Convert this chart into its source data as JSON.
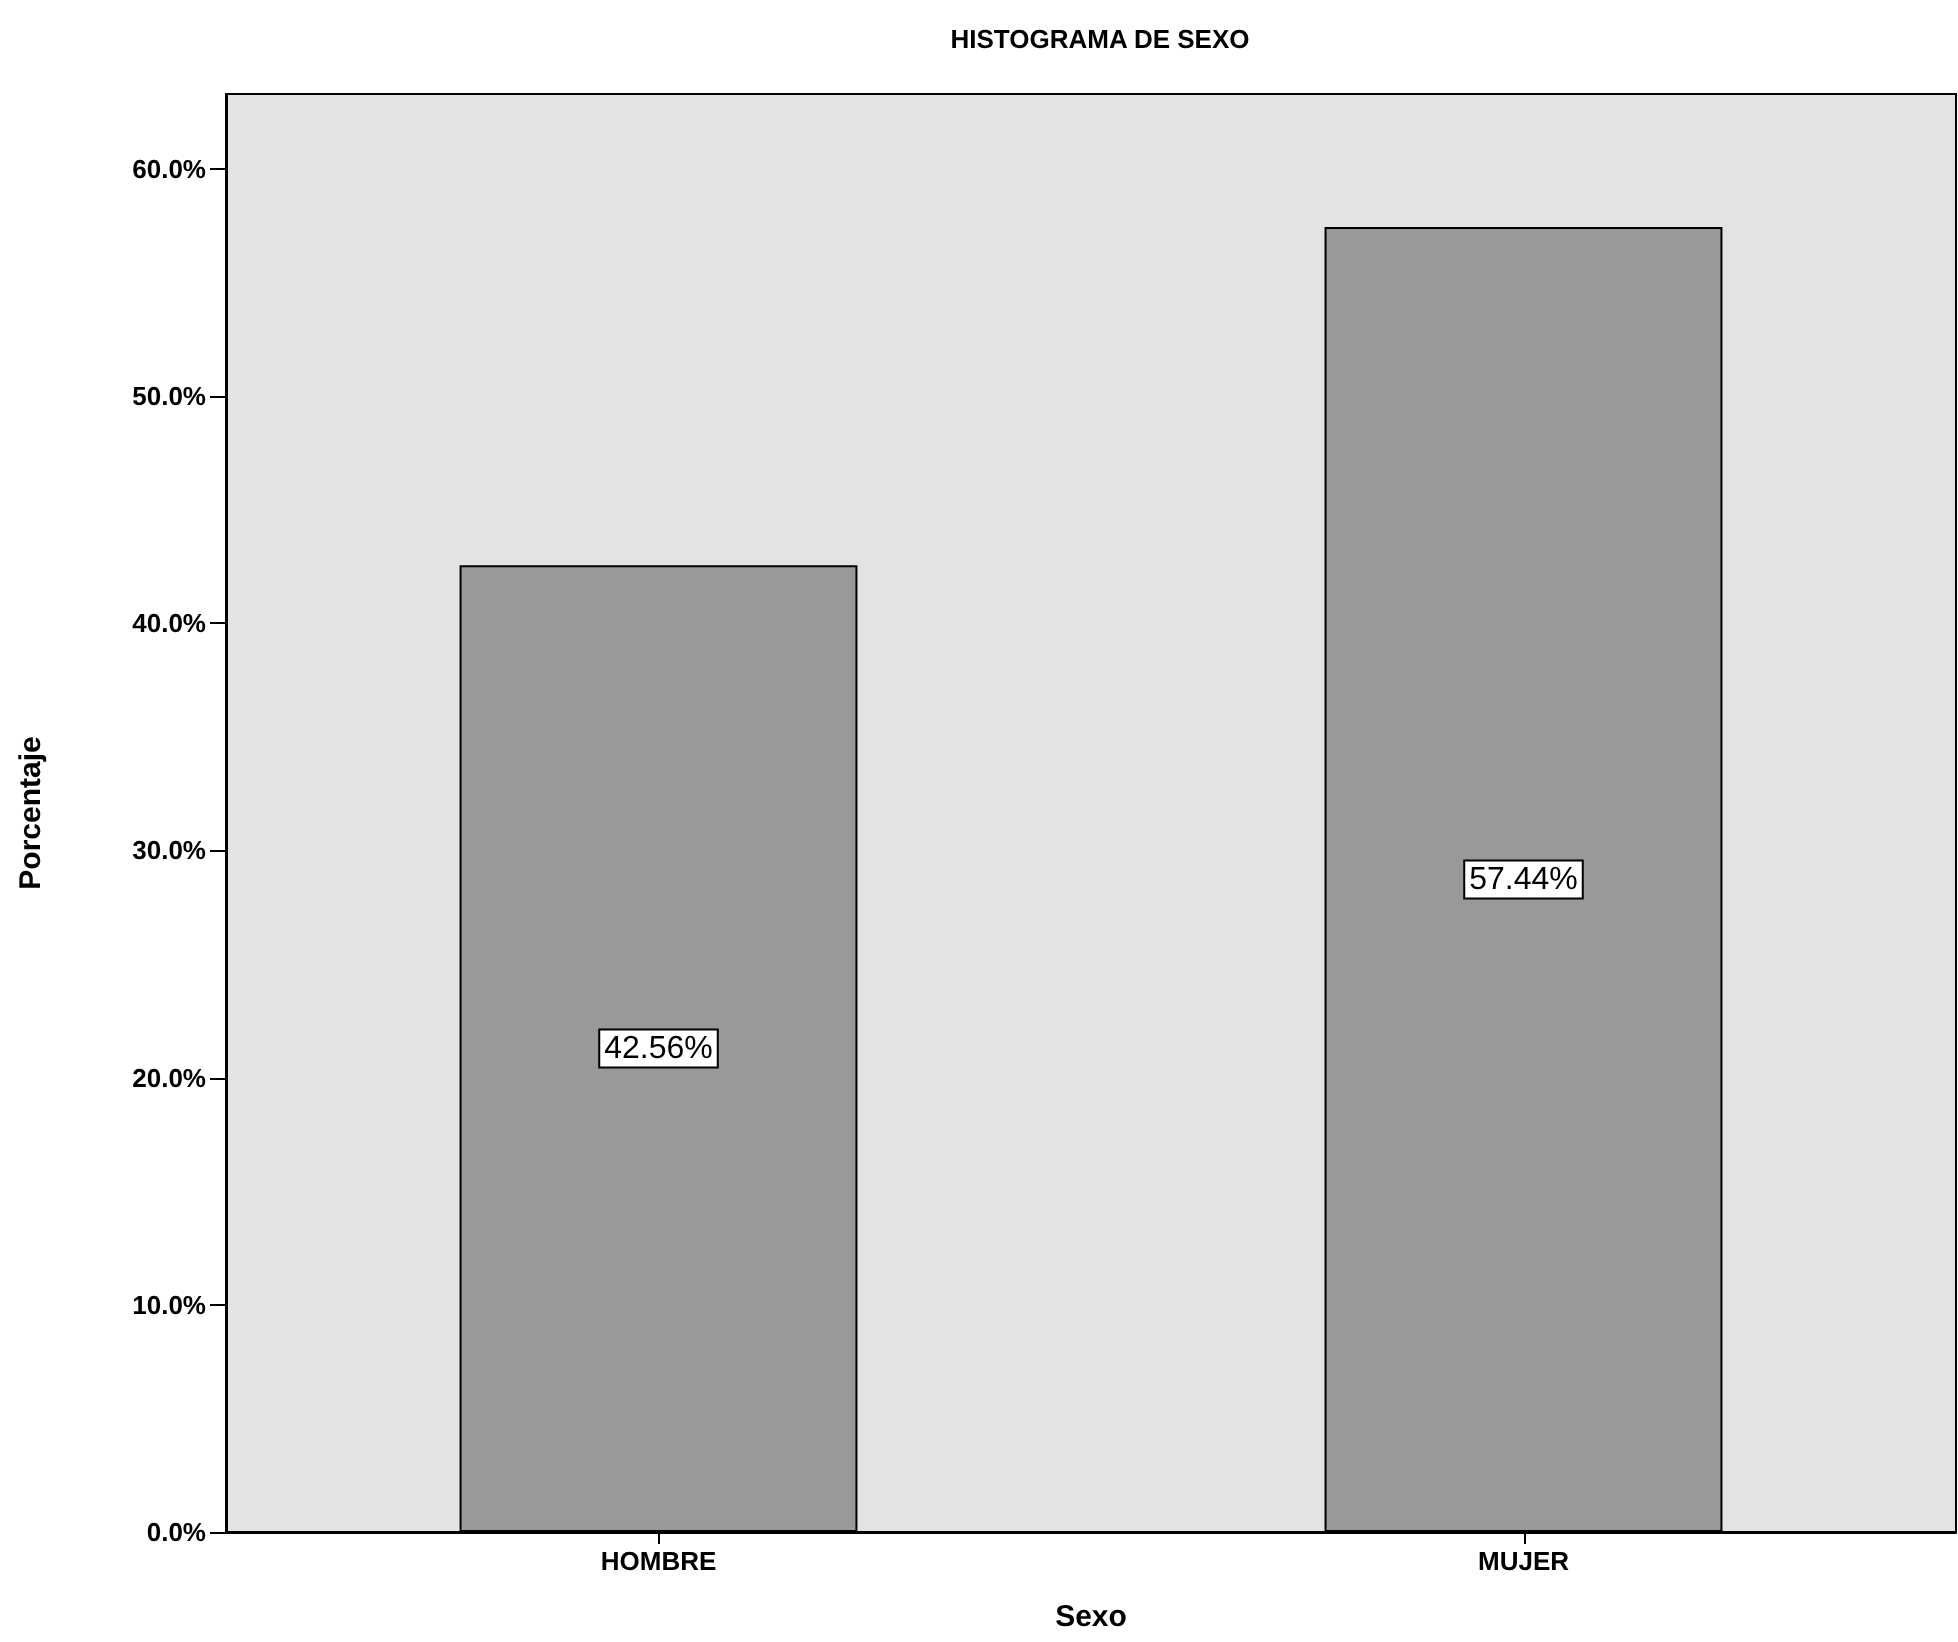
{
  "chart_data": {
    "type": "bar",
    "title": "HISTOGRAMA DE SEXO",
    "xlabel": "Sexo",
    "ylabel": "Porcentaje",
    "categories": [
      "HOMBRE",
      "MUJER"
    ],
    "values": [
      42.56,
      57.44
    ],
    "color": "#999999",
    "value_labels": [
      "42.56%",
      "57.44%"
    ],
    "ylim": [
      0,
      63.3
    ],
    "yticks": [
      {
        "value": 0,
        "label": "0.0%"
      },
      {
        "value": 10,
        "label": "10.0%"
      },
      {
        "value": 20,
        "label": "20.0%"
      },
      {
        "value": 30,
        "label": "30.0%"
      },
      {
        "value": 40,
        "label": "40.0%"
      },
      {
        "value": 50,
        "label": "50.0%"
      },
      {
        "value": 60,
        "label": "60.0%"
      }
    ],
    "grid": false
  }
}
